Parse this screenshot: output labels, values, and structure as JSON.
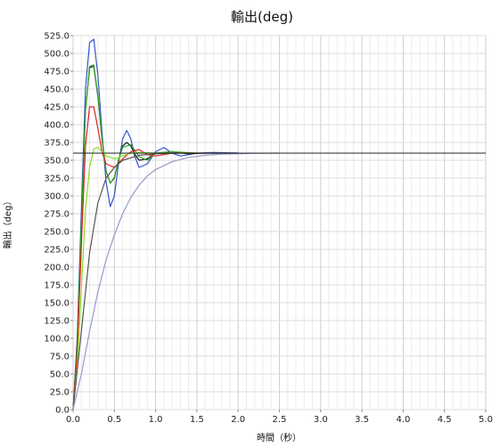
{
  "chart_data": {
    "type": "line",
    "title": "輸出(deg)",
    "xlabel": "時間（秒）",
    "ylabel": "輸出（deg）",
    "xlim": [
      0,
      5
    ],
    "ylim": [
      0,
      525
    ],
    "x_ticks": [
      "0.0",
      "0.5",
      "1.0",
      "1.5",
      "2.0",
      "2.5",
      "3.0",
      "3.5",
      "4.0",
      "4.5",
      "5.0"
    ],
    "y_ticks": [
      "0.0",
      "25.0",
      "50.0",
      "75.0",
      "100.0",
      "125.0",
      "150.0",
      "175.0",
      "200.0",
      "225.0",
      "250.0",
      "275.0",
      "300.0",
      "325.0",
      "350.0",
      "375.0",
      "400.0",
      "425.0",
      "450.0",
      "475.0",
      "500.0",
      "525.0"
    ],
    "grid": true,
    "reference_value": 360,
    "reference_color": "#222222",
    "series": [
      {
        "color": "#3355cc",
        "x": [
          0,
          0.05,
          0.1,
          0.15,
          0.2,
          0.25,
          0.3,
          0.35,
          0.4,
          0.45,
          0.5,
          0.55,
          0.6,
          0.65,
          0.7,
          0.75,
          0.8,
          0.9,
          1.0,
          1.1,
          1.2,
          1.3,
          1.4,
          1.5,
          1.7,
          2.0
        ],
        "y": [
          0,
          100,
          280,
          450,
          515,
          520,
          470,
          390,
          320,
          285,
          300,
          345,
          380,
          392,
          380,
          355,
          340,
          345,
          362,
          368,
          360,
          356,
          358,
          360,
          361,
          360
        ]
      },
      {
        "color": "#1a1a1a",
        "x": [
          0,
          0.05,
          0.1,
          0.15,
          0.2,
          0.25,
          0.3,
          0.35,
          0.4,
          0.45,
          0.5,
          0.55,
          0.6,
          0.65,
          0.7,
          0.75,
          0.8,
          0.9,
          1.0,
          1.2,
          1.4,
          1.6,
          2.0
        ],
        "y": [
          0,
          90,
          260,
          420,
          480,
          482,
          440,
          380,
          335,
          318,
          325,
          350,
          370,
          375,
          370,
          358,
          350,
          352,
          360,
          362,
          359,
          360,
          360
        ]
      },
      {
        "color": "#33aa22",
        "x": [
          0,
          0.05,
          0.1,
          0.15,
          0.2,
          0.25,
          0.3,
          0.35,
          0.4,
          0.45,
          0.5,
          0.55,
          0.6,
          0.7,
          0.8,
          0.9,
          1.0,
          1.2,
          1.5
        ],
        "y": [
          0,
          90,
          260,
          420,
          482,
          484,
          442,
          382,
          335,
          318,
          326,
          350,
          368,
          372,
          355,
          350,
          360,
          362,
          360
        ]
      },
      {
        "color": "#dd2222",
        "x": [
          0,
          0.05,
          0.1,
          0.15,
          0.2,
          0.25,
          0.3,
          0.35,
          0.4,
          0.5,
          0.6,
          0.7,
          0.8,
          0.9,
          1.0,
          1.2,
          1.5
        ],
        "y": [
          0,
          80,
          230,
          370,
          425,
          425,
          395,
          362,
          345,
          340,
          352,
          362,
          365,
          358,
          356,
          360,
          360
        ]
      },
      {
        "color": "#88dd22",
        "x": [
          0,
          0.05,
          0.1,
          0.15,
          0.2,
          0.25,
          0.3,
          0.35,
          0.4,
          0.5,
          0.6,
          0.7,
          0.8,
          1.0,
          1.2
        ],
        "y": [
          0,
          60,
          170,
          280,
          340,
          366,
          368,
          362,
          356,
          352,
          356,
          360,
          361,
          360,
          360
        ]
      },
      {
        "color": "#555555",
        "x": [
          0,
          0.1,
          0.2,
          0.3,
          0.4,
          0.5,
          0.6,
          0.8,
          1.0,
          1.2,
          1.5,
          2.0
        ],
        "y": [
          0,
          110,
          220,
          290,
          325,
          340,
          350,
          357,
          359,
          360,
          360,
          360
        ]
      },
      {
        "color": "#9999cc",
        "x": [
          0,
          0.1,
          0.2,
          0.3,
          0.4,
          0.5,
          0.6,
          0.7,
          0.8,
          0.9,
          1.0,
          1.2,
          1.4,
          1.6,
          1.8,
          2.0,
          2.2,
          2.5
        ],
        "y": [
          0,
          50,
          110,
          165,
          210,
          245,
          275,
          298,
          315,
          328,
          337,
          348,
          354,
          357,
          358.5,
          359.3,
          359.7,
          360
        ]
      }
    ]
  }
}
